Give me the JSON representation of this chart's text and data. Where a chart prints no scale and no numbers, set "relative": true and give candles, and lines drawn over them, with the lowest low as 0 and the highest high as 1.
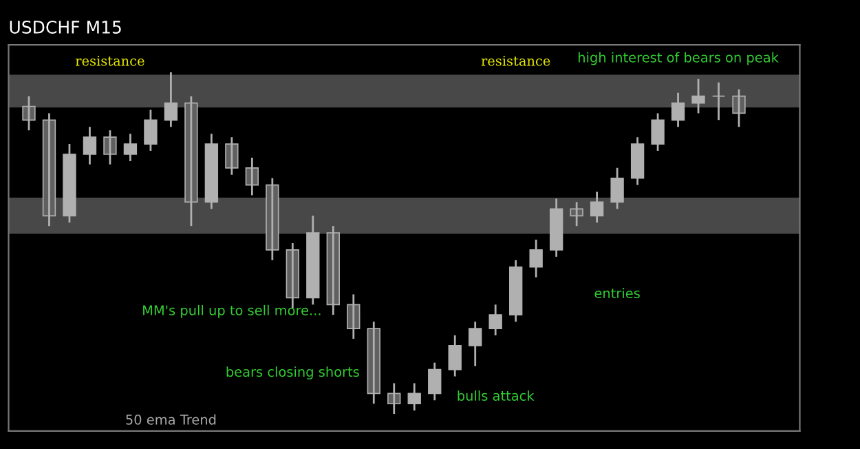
{
  "chart_data": {
    "type": "candlestick",
    "title": "USDCHF M15",
    "relative": true,
    "grid": false,
    "categories": [
      null,
      null,
      null,
      null,
      null,
      null,
      null,
      null,
      null,
      null,
      null,
      null,
      null,
      null,
      null,
      null,
      null,
      null,
      null,
      null,
      null,
      null,
      null,
      null,
      null,
      null,
      null,
      null,
      null,
      null,
      null,
      null,
      null,
      null,
      null,
      null
    ],
    "color": "#b0b0b0",
    "ohlc": [
      [
        0.9,
        0.93,
        0.83,
        0.86
      ],
      [
        0.86,
        0.88,
        0.55,
        0.58
      ],
      [
        0.58,
        0.79,
        0.56,
        0.76
      ],
      [
        0.76,
        0.84,
        0.73,
        0.81
      ],
      [
        0.81,
        0.83,
        0.73,
        0.76
      ],
      [
        0.76,
        0.82,
        0.74,
        0.79
      ],
      [
        0.79,
        0.89,
        0.77,
        0.86
      ],
      [
        0.86,
        1.0,
        0.84,
        0.91
      ],
      [
        0.91,
        0.93,
        0.55,
        0.62
      ],
      [
        0.62,
        0.82,
        0.6,
        0.79
      ],
      [
        0.79,
        0.81,
        0.7,
        0.72
      ],
      [
        0.72,
        0.75,
        0.64,
        0.67
      ],
      [
        0.67,
        0.69,
        0.45,
        0.48
      ],
      [
        0.48,
        0.5,
        0.31,
        0.34
      ],
      [
        0.34,
        0.58,
        0.32,
        0.53
      ],
      [
        0.53,
        0.55,
        0.29,
        0.32
      ],
      [
        0.32,
        0.35,
        0.22,
        0.25
      ],
      [
        0.25,
        0.27,
        0.03,
        0.06
      ],
      [
        0.06,
        0.09,
        0.0,
        0.03
      ],
      [
        0.03,
        0.09,
        0.01,
        0.06
      ],
      [
        0.06,
        0.15,
        0.04,
        0.13
      ],
      [
        0.13,
        0.23,
        0.11,
        0.2
      ],
      [
        0.2,
        0.27,
        0.14,
        0.25
      ],
      [
        0.25,
        0.32,
        0.23,
        0.29
      ],
      [
        0.29,
        0.45,
        0.27,
        0.43
      ],
      [
        0.43,
        0.51,
        0.4,
        0.48
      ],
      [
        0.48,
        0.63,
        0.46,
        0.6
      ],
      [
        0.6,
        0.62,
        0.55,
        0.58
      ],
      [
        0.58,
        0.65,
        0.56,
        0.62
      ],
      [
        0.62,
        0.72,
        0.6,
        0.69
      ],
      [
        0.69,
        0.81,
        0.67,
        0.79
      ],
      [
        0.79,
        0.88,
        0.77,
        0.86
      ],
      [
        0.86,
        0.94,
        0.84,
        0.91
      ],
      [
        0.91,
        0.98,
        0.88,
        0.93
      ],
      [
        0.93,
        0.97,
        0.86,
        0.93
      ],
      [
        0.93,
        0.95,
        0.84,
        0.88
      ]
    ],
    "bands": [
      {
        "axis": "y",
        "from": 0.9,
        "to": 0.99,
        "color": "#5a5a5a"
      },
      {
        "axis": "y",
        "from": 0.53,
        "to": 0.63,
        "color": "#5a5a5a"
      }
    ],
    "annotations": [
      "resistance",
      "resistance",
      "high interest of bears on peak",
      "MM's pull up to sell more...",
      "bears closing shorts",
      "bulls attack",
      "entries",
      "50 ema Trend"
    ]
  }
}
